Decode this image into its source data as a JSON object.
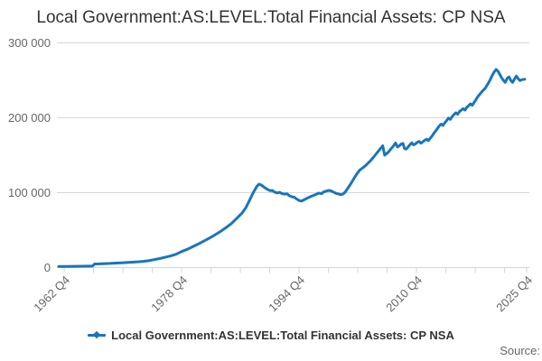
{
  "title": "Local Government:AS:LEVEL:Total Financial Assets: CP NSA",
  "source_label": "Source:",
  "colors": {
    "line": "#1876bc",
    "grid": "#d8d8d8",
    "axis": "#ccd6eb",
    "title_text": "#333333",
    "axis_text": "#666666",
    "source_text": "#666666",
    "legend_text": "#333333",
    "background": "#ffffff"
  },
  "chart_data": {
    "type": "line",
    "title": "Local Government:AS:LEVEL:Total Financial Assets: CP NSA",
    "legend_position": "bottom-center",
    "grid": "horizontal-only",
    "x_axis": {
      "min": 1962.0,
      "max": 2026.0,
      "unit": "year-quarter",
      "ticks": [
        {
          "year": 1962.75,
          "label": "1962 Q4"
        },
        {
          "year": 1966.75,
          "label": ""
        },
        {
          "year": 1970.75,
          "label": ""
        },
        {
          "year": 1974.75,
          "label": ""
        },
        {
          "year": 1978.75,
          "label": "1978 Q4"
        },
        {
          "year": 1982.75,
          "label": ""
        },
        {
          "year": 1986.75,
          "label": ""
        },
        {
          "year": 1990.75,
          "label": ""
        },
        {
          "year": 1994.75,
          "label": "1994 Q4"
        },
        {
          "year": 1998.75,
          "label": ""
        },
        {
          "year": 2002.75,
          "label": ""
        },
        {
          "year": 2006.75,
          "label": ""
        },
        {
          "year": 2010.75,
          "label": "2010 Q4"
        },
        {
          "year": 2014.75,
          "label": ""
        },
        {
          "year": 2018.75,
          "label": ""
        },
        {
          "year": 2022.75,
          "label": ""
        },
        {
          "year": 2025.75,
          "label": "2025 Q4"
        }
      ]
    },
    "y_axis": {
      "min": 0,
      "max": 300000,
      "ticks": [
        {
          "value": 0,
          "label": "0"
        },
        {
          "value": 100000,
          "label": "100 000"
        },
        {
          "value": 200000,
          "label": "200 000"
        },
        {
          "value": 300000,
          "label": "300 000"
        }
      ]
    },
    "series": [
      {
        "name": "Local Government:AS:LEVEL:Total Financial Assets: CP NSA",
        "color": "#1876bc",
        "points": [
          [
            1962.0,
            1500
          ],
          [
            1963.0,
            1600
          ],
          [
            1964.0,
            1700
          ],
          [
            1965.0,
            1800
          ],
          [
            1966.0,
            1900
          ],
          [
            1966.6,
            2000
          ],
          [
            1966.9,
            4800
          ],
          [
            1967.5,
            5000
          ],
          [
            1968.25,
            5300
          ],
          [
            1969.0,
            5600
          ],
          [
            1969.75,
            6000
          ],
          [
            1970.5,
            6400
          ],
          [
            1971.25,
            6800
          ],
          [
            1972.0,
            7200
          ],
          [
            1972.75,
            7700
          ],
          [
            1973.5,
            8300
          ],
          [
            1974.25,
            9200
          ],
          [
            1975.0,
            10600
          ],
          [
            1975.75,
            12000
          ],
          [
            1976.5,
            13700
          ],
          [
            1977.25,
            15500
          ],
          [
            1978.0,
            17800
          ],
          [
            1978.75,
            21500
          ],
          [
            1979.5,
            24300
          ],
          [
            1980.25,
            27800
          ],
          [
            1981.0,
            31500
          ],
          [
            1981.75,
            35300
          ],
          [
            1982.5,
            39300
          ],
          [
            1983.25,
            43500
          ],
          [
            1984.0,
            48000
          ],
          [
            1984.75,
            53000
          ],
          [
            1985.5,
            58500
          ],
          [
            1986.25,
            65500
          ],
          [
            1987.0,
            73000
          ],
          [
            1987.5,
            80000
          ],
          [
            1988.0,
            90000
          ],
          [
            1988.5,
            100000
          ],
          [
            1989.0,
            108500
          ],
          [
            1989.3,
            111500
          ],
          [
            1989.6,
            110200
          ],
          [
            1990.0,
            107200
          ],
          [
            1990.4,
            104600
          ],
          [
            1990.8,
            102600
          ],
          [
            1991.1,
            103000
          ],
          [
            1991.4,
            100800
          ],
          [
            1991.8,
            99600
          ],
          [
            1992.1,
            100600
          ],
          [
            1992.4,
            98800
          ],
          [
            1992.8,
            98200
          ],
          [
            1993.1,
            98600
          ],
          [
            1993.4,
            96200
          ],
          [
            1993.8,
            94400
          ],
          [
            1994.1,
            94000
          ],
          [
            1994.4,
            91600
          ],
          [
            1994.8,
            89400
          ],
          [
            1995.1,
            88800
          ],
          [
            1995.4,
            90400
          ],
          [
            1995.8,
            92400
          ],
          [
            1996.1,
            93800
          ],
          [
            1996.4,
            95200
          ],
          [
            1996.8,
            96600
          ],
          [
            1997.1,
            98000
          ],
          [
            1997.4,
            99400
          ],
          [
            1997.8,
            98800
          ],
          [
            1998.1,
            101000
          ],
          [
            1998.4,
            102000
          ],
          [
            1998.8,
            103000
          ],
          [
            1999.1,
            102400
          ],
          [
            1999.4,
            101000
          ],
          [
            1999.8,
            99000
          ],
          [
            2000.1,
            98400
          ],
          [
            2000.4,
            97400
          ],
          [
            2000.7,
            98000
          ],
          [
            2001.0,
            100500
          ],
          [
            2001.4,
            106000
          ],
          [
            2001.8,
            112000
          ],
          [
            2002.2,
            118500
          ],
          [
            2002.6,
            125000
          ],
          [
            2003.0,
            130000
          ],
          [
            2003.4,
            133000
          ],
          [
            2003.8,
            136000
          ],
          [
            2004.1,
            139000
          ],
          [
            2004.35,
            141500
          ],
          [
            2004.6,
            144000
          ],
          [
            2004.85,
            147000
          ],
          [
            2005.1,
            150000
          ],
          [
            2005.35,
            153000
          ],
          [
            2005.6,
            156000
          ],
          [
            2005.85,
            159000
          ],
          [
            2006.15,
            162700
          ],
          [
            2006.4,
            150000
          ],
          [
            2006.65,
            152000
          ],
          [
            2006.9,
            154000
          ],
          [
            2007.15,
            157000
          ],
          [
            2007.4,
            160000
          ],
          [
            2007.65,
            163000
          ],
          [
            2007.9,
            166300
          ],
          [
            2008.15,
            161000
          ],
          [
            2008.4,
            162500
          ],
          [
            2008.65,
            164800
          ],
          [
            2008.9,
            165800
          ],
          [
            2009.1,
            159000
          ],
          [
            2009.35,
            158200
          ],
          [
            2009.6,
            161000
          ],
          [
            2009.85,
            164000
          ],
          [
            2010.1,
            166600
          ],
          [
            2010.35,
            163800
          ],
          [
            2010.6,
            165200
          ],
          [
            2010.85,
            167200
          ],
          [
            2011.1,
            168400
          ],
          [
            2011.35,
            166200
          ],
          [
            2011.6,
            167800
          ],
          [
            2011.85,
            169800
          ],
          [
            2012.1,
            171400
          ],
          [
            2012.35,
            169400
          ],
          [
            2012.6,
            172400
          ],
          [
            2012.85,
            175600
          ],
          [
            2013.1,
            179200
          ],
          [
            2013.35,
            182200
          ],
          [
            2013.6,
            185600
          ],
          [
            2013.85,
            189200
          ],
          [
            2014.1,
            191600
          ],
          [
            2014.35,
            189800
          ],
          [
            2014.6,
            193200
          ],
          [
            2014.85,
            196200
          ],
          [
            2015.1,
            199600
          ],
          [
            2015.35,
            197800
          ],
          [
            2015.6,
            201600
          ],
          [
            2015.85,
            204200
          ],
          [
            2016.1,
            206600
          ],
          [
            2016.35,
            204800
          ],
          [
            2016.6,
            208200
          ],
          [
            2016.85,
            210200
          ],
          [
            2017.1,
            212200
          ],
          [
            2017.35,
            210200
          ],
          [
            2017.6,
            213800
          ],
          [
            2017.85,
            216200
          ],
          [
            2018.1,
            218600
          ],
          [
            2018.35,
            216600
          ],
          [
            2018.6,
            220600
          ],
          [
            2018.85,
            224200
          ],
          [
            2019.1,
            228200
          ],
          [
            2019.35,
            231200
          ],
          [
            2019.6,
            234200
          ],
          [
            2019.85,
            236800
          ],
          [
            2020.1,
            239400
          ],
          [
            2020.35,
            243200
          ],
          [
            2020.6,
            247200
          ],
          [
            2020.85,
            252200
          ],
          [
            2021.1,
            257200
          ],
          [
            2021.35,
            261400
          ],
          [
            2021.6,
            264600
          ],
          [
            2021.85,
            262200
          ],
          [
            2022.1,
            257800
          ],
          [
            2022.35,
            253400
          ],
          [
            2022.6,
            249800
          ],
          [
            2022.85,
            247200
          ],
          [
            2023.1,
            252800
          ],
          [
            2023.35,
            254600
          ],
          [
            2023.6,
            249800
          ],
          [
            2023.85,
            247200
          ],
          [
            2024.1,
            251800
          ],
          [
            2024.35,
            255800
          ],
          [
            2024.6,
            252200
          ],
          [
            2024.85,
            249600
          ],
          [
            2025.1,
            250800
          ],
          [
            2025.5,
            251400
          ]
        ]
      }
    ]
  }
}
